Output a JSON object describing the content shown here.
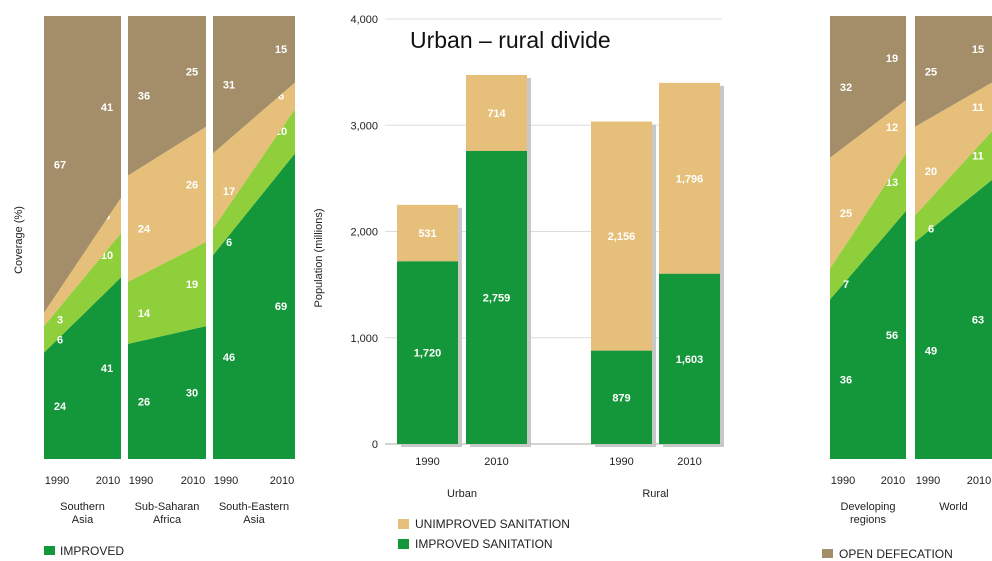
{
  "colors": {
    "improved": "#14973a",
    "shared": "#8fcf3c",
    "unimproved": "#e6c07a",
    "open_defecation": "#a48e6a",
    "axis": "#444444",
    "grid": "#dddddd"
  },
  "left_panel": {
    "ylabel": "Coverage (%)",
    "legend": {
      "improved": "IMPROVED"
    }
  },
  "center_panel": {
    "title": "Urban – rural divide",
    "ylabel": "Population (millions)",
    "legend": {
      "unimproved": "UNIMPROVED SANITATION",
      "improved": "IMPROVED SANITATION"
    }
  },
  "right_panel": {
    "legend": {
      "open_defecation": "OPEN DEFECATION"
    }
  },
  "chart_data": [
    {
      "type": "area",
      "ylabel": "Coverage (%)",
      "ylim": [
        0,
        100
      ],
      "series_order": [
        "Improved",
        "Shared",
        "Unimproved",
        "Open defecation"
      ],
      "regions": [
        {
          "name": "Southern Asia",
          "years": [
            "1990",
            "2010"
          ],
          "improved": [
            24,
            41
          ],
          "shared": [
            6,
            10
          ],
          "unimproved": [
            3,
            8
          ],
          "open_defecation": [
            67,
            41
          ]
        },
        {
          "name": "Sub-Saharan Africa",
          "years": [
            "1990",
            "2010"
          ],
          "improved": [
            26,
            30
          ],
          "shared": [
            14,
            19
          ],
          "unimproved": [
            24,
            26
          ],
          "open_defecation": [
            36,
            25
          ]
        },
        {
          "name": "South-Eastern Asia",
          "years": [
            "1990",
            "2010"
          ],
          "improved": [
            46,
            69
          ],
          "shared": [
            6,
            10
          ],
          "unimproved": [
            17,
            6
          ],
          "open_defecation": [
            31,
            15
          ]
        }
      ]
    },
    {
      "type": "bar",
      "title": "Urban – rural divide",
      "ylabel": "Population (millions)",
      "ylim": [
        0,
        4000
      ],
      "yticks": [
        "0",
        "1,000",
        "2,000",
        "3,000",
        "4,000"
      ],
      "groups": [
        "Urban",
        "Rural"
      ],
      "categories": [
        "1990",
        "2010",
        "1990",
        "2010"
      ],
      "series": [
        {
          "name": "IMPROVED SANITATION",
          "values": [
            1720,
            2759,
            879,
            1603
          ],
          "labels": [
            "1,720",
            "2,759",
            "879",
            "1,603"
          ]
        },
        {
          "name": "UNIMPROVED SANITATION",
          "values": [
            531,
            714,
            2156,
            1796
          ],
          "labels": [
            "531",
            "714",
            "2,156",
            "1,796"
          ]
        }
      ]
    },
    {
      "type": "area",
      "ylim": [
        0,
        100
      ],
      "series_order": [
        "Improved",
        "Shared",
        "Unimproved",
        "Open defecation"
      ],
      "regions": [
        {
          "name": "Developing regions",
          "years": [
            "1990",
            "2010"
          ],
          "improved": [
            36,
            56
          ],
          "shared": [
            7,
            13
          ],
          "unimproved": [
            25,
            12
          ],
          "open_defecation": [
            32,
            19
          ]
        },
        {
          "name": "World",
          "years": [
            "1990",
            "2010"
          ],
          "improved": [
            49,
            63
          ],
          "shared": [
            6,
            11
          ],
          "unimproved": [
            20,
            11
          ],
          "open_defecation": [
            25,
            15
          ]
        }
      ]
    }
  ]
}
